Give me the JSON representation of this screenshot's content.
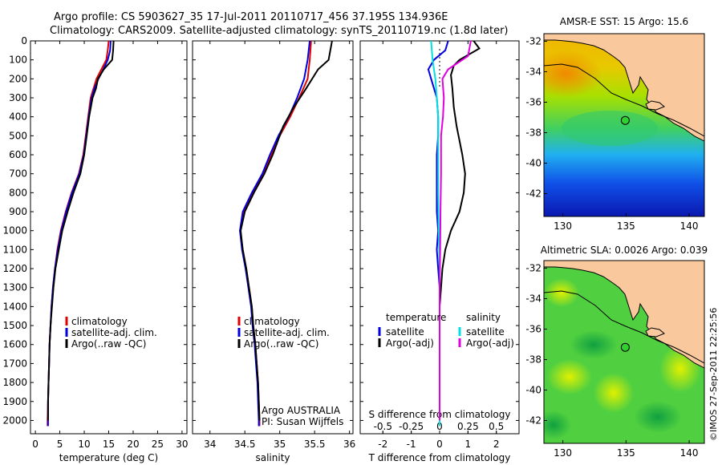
{
  "title_lines": [
    "Argo profile: CS 5903627_35 17-Jul-2011 20110717_456 37.195S 134.936E",
    "Climatology: CARS2009. Satellite-adjusted climatology: synTS_20110719.nc (1.8d later)"
  ],
  "credit": "©IMOS 27-Sep-2011 22:25:56",
  "colors": {
    "climatology": "#e00000",
    "satellite": "#0000e0",
    "argo": "#000000",
    "satellite_salinity": "#00e0e0",
    "argo_salinity": "#e000e0",
    "land": "#f9c89c"
  },
  "chart_data": [
    {
      "type": "line",
      "xlabel": "temperature (deg C)",
      "ylabel": "",
      "xlim": [
        -1,
        31
      ],
      "ylim": [
        2070,
        0
      ],
      "xticks": [
        "0",
        "5",
        "10",
        "15",
        "20",
        "25",
        "30"
      ],
      "yticks": [
        "0",
        "100",
        "200",
        "300",
        "400",
        "500",
        "600",
        "700",
        "800",
        "900",
        "1000",
        "1100",
        "1200",
        "1300",
        "1400",
        "1500",
        "1600",
        "1700",
        "1800",
        "1900",
        "2000"
      ],
      "legend": [
        "climatology",
        "satellite-adj. clim.",
        "Argo(..raw -QC)"
      ],
      "series": [
        {
          "name": "climatology",
          "color": "#e00000",
          "points": [
            [
              15.0,
              0
            ],
            [
              14.8,
              50
            ],
            [
              14.5,
              100
            ],
            [
              13.5,
              150
            ],
            [
              12.5,
              200
            ],
            [
              11.9,
              250
            ],
            [
              11.3,
              300
            ],
            [
              10.8,
              400
            ],
            [
              10.3,
              500
            ],
            [
              9.8,
              600
            ],
            [
              8.9,
              700
            ],
            [
              7.4,
              800
            ],
            [
              6.2,
              900
            ],
            [
              5.2,
              1000
            ],
            [
              4.5,
              1100
            ],
            [
              4.0,
              1200
            ],
            [
              3.6,
              1300
            ],
            [
              3.3,
              1400
            ],
            [
              3.1,
              1500
            ],
            [
              2.9,
              1600
            ],
            [
              2.8,
              1700
            ],
            [
              2.7,
              1800
            ],
            [
              2.6,
              1900
            ],
            [
              2.5,
              2000
            ],
            [
              2.5,
              2030
            ]
          ]
        },
        {
          "name": "satellite-adj. clim.",
          "color": "#0000e0",
          "points": [
            [
              15.4,
              0
            ],
            [
              15.3,
              50
            ],
            [
              14.8,
              100
            ],
            [
              13.9,
              150
            ],
            [
              12.9,
              200
            ],
            [
              12.1,
              250
            ],
            [
              11.5,
              300
            ],
            [
              10.9,
              400
            ],
            [
              10.4,
              500
            ],
            [
              9.9,
              600
            ],
            [
              9.0,
              700
            ],
            [
              7.5,
              800
            ],
            [
              6.3,
              900
            ],
            [
              5.3,
              1000
            ],
            [
              4.6,
              1100
            ],
            [
              4.0,
              1200
            ],
            [
              3.6,
              1300
            ],
            [
              3.3,
              1400
            ],
            [
              3.1,
              1500
            ],
            [
              2.9,
              1600
            ],
            [
              2.8,
              1700
            ],
            [
              2.7,
              1800
            ],
            [
              2.6,
              1900
            ],
            [
              2.6,
              2000
            ],
            [
              2.6,
              2030
            ]
          ]
        },
        {
          "name": "Argo(..raw -QC)",
          "color": "#000000",
          "points": [
            [
              16.0,
              0
            ],
            [
              15.9,
              50
            ],
            [
              15.7,
              100
            ],
            [
              14.0,
              150
            ],
            [
              12.8,
              200
            ],
            [
              12.4,
              250
            ],
            [
              11.7,
              300
            ],
            [
              11.0,
              400
            ],
            [
              10.5,
              500
            ],
            [
              10.0,
              600
            ],
            [
              9.2,
              700
            ],
            [
              7.8,
              800
            ],
            [
              6.6,
              900
            ],
            [
              5.5,
              1000
            ],
            [
              4.8,
              1100
            ],
            [
              4.1,
              1200
            ],
            [
              3.7,
              1300
            ],
            [
              3.4,
              1400
            ],
            [
              3.1,
              1500
            ],
            [
              2.9,
              1600
            ],
            [
              2.8,
              1700
            ],
            [
              2.7,
              1800
            ],
            [
              2.6,
              1900
            ],
            [
              2.6,
              2000
            ]
          ]
        }
      ]
    },
    {
      "type": "line",
      "xlabel": "salinity",
      "ylabel": "",
      "xlim": [
        33.75,
        36.05
      ],
      "ylim": [
        2070,
        0
      ],
      "xticks": [
        "34",
        "34.5",
        "35",
        "35.5",
        "36"
      ],
      "legend": [
        "climatology",
        "satellite-adj. clim.",
        "Argo(..raw -QC)"
      ],
      "annotations": [
        "Argo AUSTRALIA",
        "PI: Susan Wijffels"
      ],
      "series": [
        {
          "name": "climatology",
          "color": "#e00000",
          "points": [
            [
              35.45,
              0
            ],
            [
              35.43,
              100
            ],
            [
              35.4,
              200
            ],
            [
              35.28,
              300
            ],
            [
              35.15,
              400
            ],
            [
              35.0,
              500
            ],
            [
              34.88,
              600
            ],
            [
              34.77,
              700
            ],
            [
              34.62,
              800
            ],
            [
              34.48,
              900
            ],
            [
              34.43,
              1000
            ],
            [
              34.47,
              1100
            ],
            [
              34.52,
              1200
            ],
            [
              34.56,
              1300
            ],
            [
              34.6,
              1400
            ],
            [
              34.62,
              1500
            ],
            [
              34.65,
              1600
            ],
            [
              34.67,
              1700
            ],
            [
              34.69,
              1800
            ],
            [
              34.7,
              1900
            ],
            [
              34.71,
              2000
            ],
            [
              34.71,
              2030
            ]
          ]
        },
        {
          "name": "satellite-adj. clim.",
          "color": "#0000e0",
          "points": [
            [
              35.43,
              0
            ],
            [
              35.4,
              100
            ],
            [
              35.35,
              200
            ],
            [
              35.25,
              300
            ],
            [
              35.13,
              400
            ],
            [
              34.98,
              500
            ],
            [
              34.86,
              600
            ],
            [
              34.75,
              700
            ],
            [
              34.6,
              800
            ],
            [
              34.47,
              900
            ],
            [
              34.43,
              1000
            ],
            [
              34.46,
              1100
            ],
            [
              34.51,
              1200
            ],
            [
              34.55,
              1300
            ],
            [
              34.59,
              1400
            ],
            [
              34.61,
              1500
            ],
            [
              34.64,
              1600
            ],
            [
              34.66,
              1700
            ],
            [
              34.68,
              1800
            ],
            [
              34.69,
              1900
            ],
            [
              34.7,
              2000
            ],
            [
              34.7,
              2030
            ]
          ]
        },
        {
          "name": "Argo(..raw -QC)",
          "color": "#000000",
          "points": [
            [
              35.75,
              0
            ],
            [
              35.7,
              100
            ],
            [
              35.55,
              150
            ],
            [
              35.38,
              250
            ],
            [
              35.2,
              350
            ],
            [
              35.05,
              450
            ],
            [
              34.9,
              600
            ],
            [
              34.78,
              700
            ],
            [
              34.63,
              800
            ],
            [
              34.5,
              900
            ],
            [
              34.44,
              1000
            ],
            [
              34.47,
              1100
            ],
            [
              34.52,
              1200
            ],
            [
              34.56,
              1300
            ],
            [
              34.6,
              1400
            ],
            [
              34.62,
              1500
            ],
            [
              34.65,
              1600
            ],
            [
              34.67,
              1700
            ],
            [
              34.69,
              1800
            ],
            [
              34.7,
              1900
            ],
            [
              34.71,
              2000
            ]
          ]
        }
      ]
    },
    {
      "type": "line",
      "xlabel": "T difference from climatology",
      "xlabel_top": "S difference from climatology",
      "ylabel": "",
      "xlim": [
        -2.8,
        2.8
      ],
      "ylim": [
        2070,
        0
      ],
      "xticks": [
        "-2",
        "-1",
        "0",
        "1",
        "2"
      ],
      "xticks_top": [
        "-0.5",
        "-0.25",
        "0",
        "0.25",
        "0.5"
      ],
      "legend_groups": [
        {
          "heading": "temperature",
          "items": [
            "satellite",
            "Argo(-adj)"
          ]
        },
        {
          "heading": "salinity",
          "items": [
            "satellite",
            "Argo(-adj)"
          ]
        }
      ],
      "series": [
        {
          "name": "satellite",
          "group": "temperature",
          "color": "#0000e0",
          "points": [
            [
              0.3,
              0
            ],
            [
              0.2,
              50
            ],
            [
              -0.2,
              100
            ],
            [
              -0.4,
              150
            ],
            [
              -0.3,
              200
            ],
            [
              -0.1,
              300
            ],
            [
              -0.05,
              400
            ],
            [
              -0.05,
              500
            ],
            [
              -0.1,
              600
            ],
            [
              -0.1,
              700
            ],
            [
              -0.1,
              800
            ],
            [
              -0.1,
              900
            ],
            [
              -0.05,
              1000
            ],
            [
              -0.1,
              1100
            ],
            [
              -0.05,
              1200
            ],
            [
              0,
              1300
            ],
            [
              0,
              1500
            ],
            [
              0,
              1700
            ],
            [
              0,
              1900
            ],
            [
              0,
              2000
            ]
          ]
        },
        {
          "name": "Argo(-adj)",
          "group": "temperature",
          "color": "#000000",
          "points": [
            [
              1.2,
              0
            ],
            [
              1.4,
              40
            ],
            [
              0.7,
              100
            ],
            [
              0.5,
              130
            ],
            [
              0.4,
              180
            ],
            [
              0.45,
              250
            ],
            [
              0.5,
              350
            ],
            [
              0.6,
              450
            ],
            [
              0.8,
              600
            ],
            [
              0.9,
              700
            ],
            [
              0.85,
              800
            ],
            [
              0.7,
              900
            ],
            [
              0.4,
              1000
            ],
            [
              0.2,
              1100
            ],
            [
              0.1,
              1200
            ],
            [
              0.05,
              1300
            ],
            [
              0,
              1400
            ],
            [
              0,
              1600
            ],
            [
              0,
              1800
            ],
            [
              0,
              2000
            ]
          ]
        },
        {
          "name": "satellite",
          "group": "salinity",
          "color": "#00e0e0",
          "points": [
            [
              -0.3,
              0
            ],
            [
              -0.25,
              100
            ],
            [
              -0.15,
              200
            ],
            [
              -0.1,
              300
            ],
            [
              -0.05,
              400
            ],
            [
              -0.05,
              600
            ],
            [
              -0.05,
              800
            ],
            [
              -0.03,
              1000
            ],
            [
              0,
              1200
            ],
            [
              0,
              1500
            ],
            [
              0,
              1800
            ],
            [
              0,
              2030
            ]
          ]
        },
        {
          "name": "Argo(-adj)",
          "group": "salinity",
          "color": "#e000e0",
          "points": [
            [
              1.1,
              0
            ],
            [
              1.0,
              80
            ],
            [
              0.3,
              150
            ],
            [
              0.1,
              200
            ],
            [
              0.15,
              300
            ],
            [
              0.12,
              400
            ],
            [
              0.05,
              500
            ],
            [
              0.05,
              700
            ],
            [
              0.03,
              900
            ],
            [
              0.02,
              1100
            ],
            [
              0,
              1300
            ],
            [
              0,
              1600
            ],
            [
              0,
              2000
            ]
          ]
        }
      ]
    },
    {
      "type": "heatmap",
      "title": "AMSR-E SST: 15 Argo: 15.6",
      "xlim": [
        128.5,
        141.2
      ],
      "ylim": [
        -43.5,
        -31.5
      ],
      "xticks": [
        "130",
        "135",
        "140"
      ],
      "yticks": [
        "-32",
        "-34",
        "-36",
        "-38",
        "-40",
        "-42"
      ],
      "marker": {
        "lon": 134.936,
        "lat": -37.195
      }
    },
    {
      "type": "heatmap",
      "title": "Altimetric SLA: 0.0026 Argo: 0.039",
      "xlim": [
        128.5,
        141.2
      ],
      "ylim": [
        -43.5,
        -31.5
      ],
      "xticks": [
        "130",
        "135",
        "140"
      ],
      "yticks": [
        "-32",
        "-34",
        "-36",
        "-38",
        "-40",
        "-42"
      ],
      "marker": {
        "lon": 134.936,
        "lat": -37.195
      }
    }
  ]
}
